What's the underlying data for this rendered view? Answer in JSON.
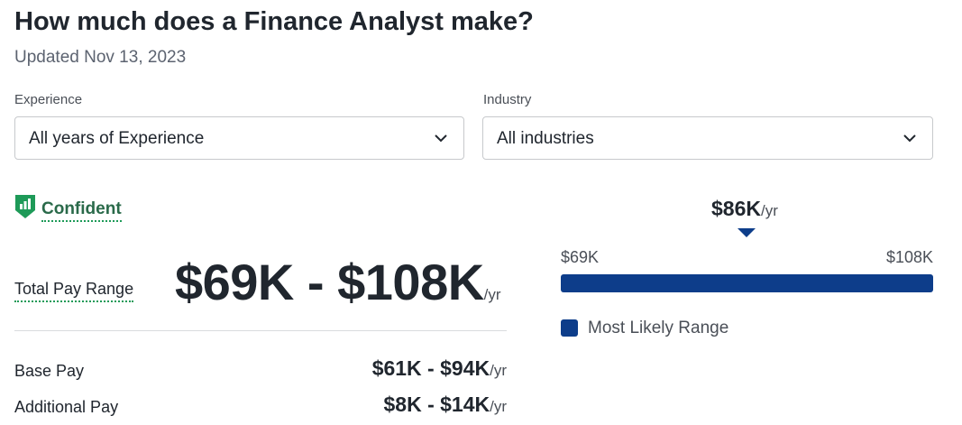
{
  "header": {
    "title": "How much does a Finance Analyst make?",
    "updated": "Updated Nov 13, 2023"
  },
  "filters": {
    "experience": {
      "label": "Experience",
      "value": "All years of Experience"
    },
    "industry": {
      "label": "Industry",
      "value": "All industries"
    }
  },
  "confidence": {
    "label": "Confident",
    "icon": "bar-chart-shield-icon",
    "color": "#1e9a58"
  },
  "pay": {
    "total_label": "Total Pay Range",
    "total_value": "$69K - $108K",
    "unit": "/yr",
    "rows": [
      {
        "label": "Base Pay",
        "value": "$61K - $94K",
        "unit": "/yr"
      },
      {
        "label": "Additional Pay",
        "value": "$8K - $14K",
        "unit": "/yr"
      }
    ]
  },
  "range_chart": {
    "median": "$86K",
    "median_unit": "/yr",
    "min_label": "$69K",
    "max_label": "$108K",
    "legend": "Most Likely Range",
    "color": "#0d3d8a"
  }
}
